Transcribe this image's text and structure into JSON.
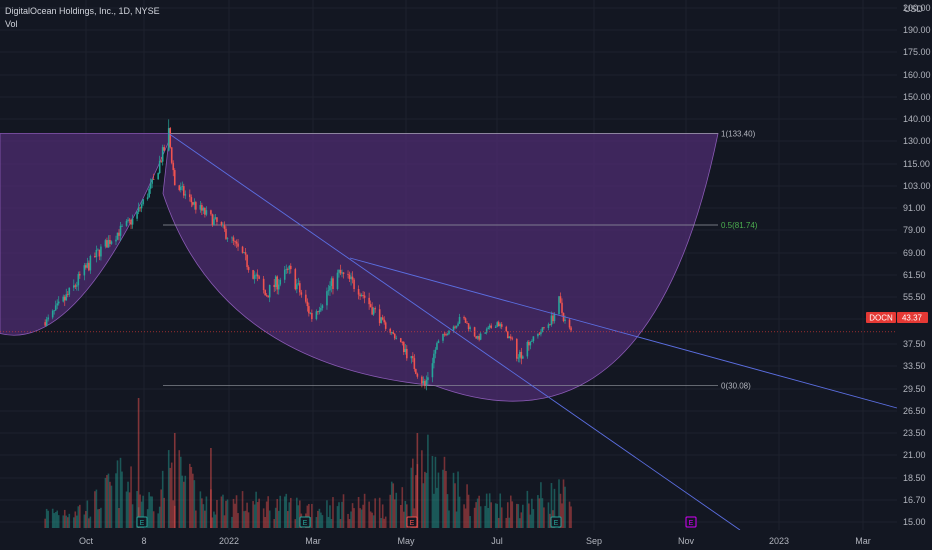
{
  "header": {
    "title": "DigitalOcean Holdings, Inc., 1D, NYSE",
    "indicator": "Vol",
    "currency": "USD"
  },
  "colors": {
    "background": "#131722",
    "up": "#26a69a",
    "down": "#ef5350",
    "cup_fill": "#4a2a6b",
    "trend_line": "#5b6ee1",
    "price_tag": "#e53935"
  },
  "chart_data": {
    "type": "candlestick",
    "symbol": "DOCN",
    "last_price": "43.37",
    "price_axis_ticks": [
      "200.00",
      "190.00",
      "175.00",
      "160.00",
      "150.00",
      "140.00",
      "130.00",
      "115.00",
      "103.00",
      "91.00",
      "79.00",
      "69.00",
      "61.50",
      "55.50",
      "49.50",
      "43.37",
      "37.50",
      "33.50",
      "29.50",
      "26.50",
      "23.50",
      "21.00",
      "18.50",
      "16.70",
      "15.00"
    ],
    "time_axis_ticks": [
      "Oct",
      "8",
      "2022",
      "Mar",
      "May",
      "Jul",
      "Sep",
      "Nov",
      "2023",
      "Mar"
    ],
    "fib_levels": [
      {
        "label": "1(133.40)",
        "price": 133.4
      },
      {
        "label": "0.5(81.74)",
        "price": 81.74
      },
      {
        "label": "0(30.08)",
        "price": 30.08
      }
    ],
    "events": [
      "E",
      "E",
      "E",
      "E",
      "E"
    ],
    "price_anchors": [
      [
        "2021-09-01",
        48
      ],
      [
        "2021-09-20",
        58
      ],
      [
        "2021-10-10",
        72
      ],
      [
        "2021-10-30",
        85
      ],
      [
        "2021-11-12",
        105
      ],
      [
        "2021-11-22",
        133
      ],
      [
        "2021-11-26",
        104
      ],
      [
        "2021-12-10",
        92
      ],
      [
        "2021-12-25",
        82
      ],
      [
        "2022-01-10",
        68
      ],
      [
        "2022-01-25",
        56
      ],
      [
        "2022-02-10",
        63
      ],
      [
        "2022-02-25",
        50
      ],
      [
        "2022-03-15",
        62
      ],
      [
        "2022-03-28",
        58
      ],
      [
        "2022-04-10",
        50
      ],
      [
        "2022-04-25",
        38
      ],
      [
        "2022-05-11",
        30
      ],
      [
        "2022-05-25",
        43
      ],
      [
        "2022-06-05",
        50
      ],
      [
        "2022-06-15",
        40
      ],
      [
        "2022-06-28",
        48
      ],
      [
        "2022-07-12",
        35
      ],
      [
        "2022-07-22",
        40
      ],
      [
        "2022-08-02",
        48
      ],
      [
        "2022-08-08",
        54
      ],
      [
        "2022-08-16",
        43.37
      ]
    ],
    "volume_anchors": [
      [
        "2021-09-01",
        5
      ],
      [
        "2021-10-01",
        7
      ],
      [
        "2021-10-20",
        16
      ],
      [
        "2021-11-10",
        9
      ],
      [
        "2021-11-25",
        20
      ],
      [
        "2021-12-15",
        9
      ],
      [
        "2022-01-20",
        8
      ],
      [
        "2022-03-01",
        7
      ],
      [
        "2022-04-15",
        8
      ],
      [
        "2022-05-05",
        18
      ],
      [
        "2022-05-11",
        22
      ],
      [
        "2022-06-10",
        9
      ],
      [
        "2022-07-10",
        8
      ],
      [
        "2022-08-10",
        12
      ],
      [
        "2022-08-16",
        6
      ]
    ]
  }
}
